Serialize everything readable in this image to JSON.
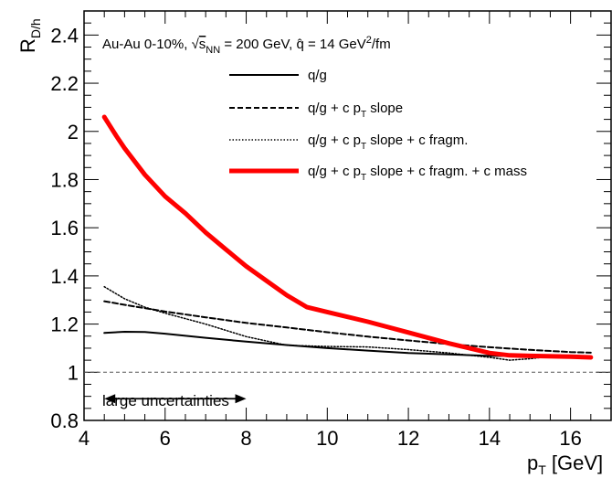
{
  "chart_data": {
    "type": "line",
    "title": "",
    "xlabel": "p_T [GeV]",
    "ylabel": "R_D/h",
    "xlim": [
      4,
      17
    ],
    "ylim": [
      0.8,
      2.5
    ],
    "x_ticks": [
      4,
      6,
      8,
      10,
      12,
      14,
      16
    ],
    "x_tick_labels": [
      "4",
      "6",
      "8",
      "10",
      "12",
      "14",
      "16"
    ],
    "y_ticks": [
      0.8,
      1,
      1.2,
      1.4,
      1.6,
      1.8,
      2,
      2.2,
      2.4
    ],
    "y_tick_labels": [
      "0.8",
      "1",
      "1.2",
      "1.4",
      "1.6",
      "1.8",
      "2",
      "2.2",
      "2.4"
    ],
    "grid": false,
    "legend_placement": "top",
    "legend_header": "Au-Au 0-10%, √s_NN = 200 GeV, q̂ = 14 GeV²/fm",
    "reference_line": {
      "y": 1,
      "style": "dashed"
    },
    "annotation": {
      "text": "large uncertainties",
      "x_range": [
        4.5,
        8.0
      ],
      "y": 0.89
    },
    "series": [
      {
        "name": "q/g",
        "color": "#000000",
        "style": "solid",
        "x": [
          4.5,
          5.0,
          5.5,
          6.0,
          7.0,
          8.0,
          9.0,
          10.0,
          11.0,
          12.0,
          13.0,
          14.0,
          15.0,
          16.0,
          16.5
        ],
        "y": [
          1.163,
          1.168,
          1.167,
          1.16,
          1.143,
          1.127,
          1.113,
          1.1,
          1.09,
          1.08,
          1.074,
          1.068,
          1.067,
          1.066,
          1.066
        ]
      },
      {
        "name": "q/g + c p_T slope",
        "color": "#000000",
        "style": "dashed",
        "x": [
          4.5,
          5.0,
          6.0,
          7.0,
          8.0,
          9.0,
          10.0,
          11.0,
          12.0,
          13.0,
          14.0,
          15.0,
          16.0,
          16.5
        ],
        "y": [
          1.295,
          1.28,
          1.252,
          1.228,
          1.205,
          1.186,
          1.166,
          1.148,
          1.132,
          1.117,
          1.104,
          1.093,
          1.084,
          1.081
        ]
      },
      {
        "name": "q/g + c p_T slope + c fragm.",
        "color": "#000000",
        "style": "dotted",
        "x": [
          4.5,
          5.0,
          5.5,
          6.0,
          7.0,
          8.0,
          9.0,
          10.0,
          11.0,
          12.0,
          13.0,
          14.0,
          14.5,
          15.0,
          15.5,
          16.0,
          16.5
        ],
        "y": [
          1.355,
          1.305,
          1.27,
          1.245,
          1.2,
          1.148,
          1.112,
          1.107,
          1.105,
          1.094,
          1.08,
          1.062,
          1.05,
          1.056,
          1.066,
          1.065,
          1.063
        ]
      },
      {
        "name": "q/g + c p_T slope + c fragm. + c mass",
        "color": "#ff0000",
        "style": "thick",
        "x": [
          4.5,
          4.8,
          5.0,
          5.5,
          6.0,
          6.5,
          7.0,
          7.5,
          8.0,
          8.5,
          9.0,
          9.5,
          10.0,
          11.0,
          12.0,
          13.0,
          14.0,
          14.5,
          15.0,
          16.0,
          16.5
        ],
        "y": [
          2.06,
          1.98,
          1.93,
          1.82,
          1.73,
          1.66,
          1.58,
          1.51,
          1.44,
          1.38,
          1.32,
          1.27,
          1.25,
          1.21,
          1.165,
          1.12,
          1.08,
          1.07,
          1.068,
          1.065,
          1.062
        ]
      }
    ]
  }
}
